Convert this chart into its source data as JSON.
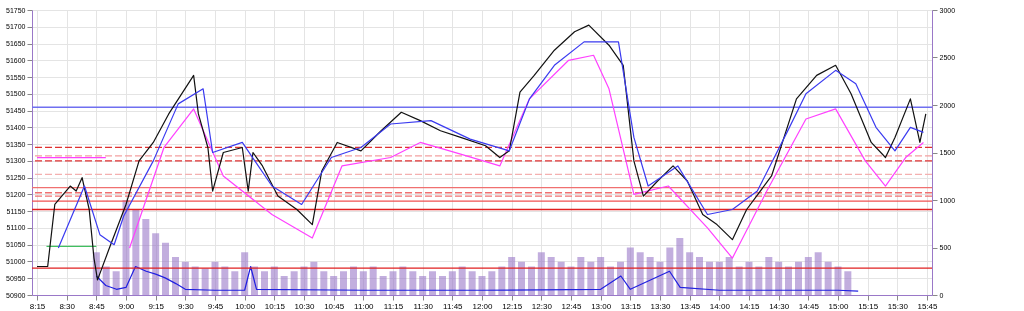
{
  "chart_data": {
    "type": "line",
    "grid": true,
    "xlim": [
      8.25,
      15.75
    ],
    "xticks": [
      {
        "value": 8.25,
        "label": "8:15"
      },
      {
        "value": 8.5,
        "label": "8:30"
      },
      {
        "value": 8.75,
        "label": "8:45"
      },
      {
        "value": 9,
        "label": "9:00"
      },
      {
        "value": 9.25,
        "label": "9:15"
      },
      {
        "value": 9.5,
        "label": "9:30"
      },
      {
        "value": 9.75,
        "label": "9:45"
      },
      {
        "value": 10,
        "label": "10:00"
      },
      {
        "value": 10.25,
        "label": "10:15"
      },
      {
        "value": 10.5,
        "label": "10:30"
      },
      {
        "value": 10.75,
        "label": "10:45"
      },
      {
        "value": 11,
        "label": "11:00"
      },
      {
        "value": 11.25,
        "label": "11:15"
      },
      {
        "value": 11.5,
        "label": "11:30"
      },
      {
        "value": 11.75,
        "label": "11:45"
      },
      {
        "value": 12,
        "label": "12:00"
      },
      {
        "value": 12.25,
        "label": "12:15"
      },
      {
        "value": 12.5,
        "label": "12:30"
      },
      {
        "value": 12.75,
        "label": "12:45"
      },
      {
        "value": 13,
        "label": "13:00"
      },
      {
        "value": 13.25,
        "label": "13:15"
      },
      {
        "value": 13.5,
        "label": "13:30"
      },
      {
        "value": 13.75,
        "label": "13:45"
      },
      {
        "value": 14,
        "label": "14:00"
      },
      {
        "value": 14.25,
        "label": "14:15"
      },
      {
        "value": 14.5,
        "label": "14:30"
      },
      {
        "value": 14.75,
        "label": "14:45"
      },
      {
        "value": 15,
        "label": "15:00"
      },
      {
        "value": 15.25,
        "label": "15:15"
      },
      {
        "value": 15.5,
        "label": "15:30"
      },
      {
        "value": 15.75,
        "label": "15:45"
      }
    ],
    "ylim": [
      50900,
      51750
    ],
    "yticks": [
      50900,
      50950,
      51000,
      51050,
      51100,
      51150,
      51200,
      51250,
      51300,
      51350,
      51400,
      51450,
      51500,
      51550,
      51600,
      51650,
      51700,
      51750
    ],
    "y2lim": [
      0,
      3000
    ],
    "y2ticks": [
      0,
      500,
      1000,
      1500,
      2000,
      2500,
      3000
    ],
    "ref_lines": [
      {
        "axis": "y",
        "value": 51460,
        "color": "#6f6ff0",
        "line_style": "solid"
      },
      {
        "axis": "y",
        "value": 51340,
        "color": "#e03030",
        "line_style": "dashed"
      },
      {
        "axis": "y",
        "value": 51315,
        "color": "#f4a0a0",
        "line_style": "dashed"
      },
      {
        "axis": "y",
        "value": 51300,
        "color": "#e03030",
        "line_style": "dashed"
      },
      {
        "axis": "y",
        "value": 51260,
        "color": "#f4b0b0",
        "line_style": "dashed"
      },
      {
        "axis": "y",
        "value": 51220,
        "color": "#f07070",
        "line_style": "solid"
      },
      {
        "axis": "y",
        "value": 51205,
        "color": "#f07070",
        "line_style": "dashed"
      },
      {
        "axis": "y",
        "value": 51195,
        "color": "#f07070",
        "line_style": "dashed"
      },
      {
        "axis": "y",
        "value": 51180,
        "color": "#f05050",
        "line_style": "solid"
      },
      {
        "axis": "y",
        "value": 51155,
        "color": "#e02020",
        "line_style": "solid"
      },
      {
        "axis": "y",
        "value": 50980,
        "color": "#e02020",
        "line_style": "solid"
      }
    ],
    "series": [
      {
        "type": "bar",
        "axis": "y2",
        "color": "#9a78c8",
        "x": [
          8.75,
          8.833,
          8.917,
          9,
          9.083,
          9.167,
          9.25,
          9.333,
          9.417,
          9.5,
          9.583,
          9.667,
          9.75,
          9.833,
          9.917,
          10,
          10.083,
          10.167,
          10.25,
          10.333,
          10.417,
          10.5,
          10.583,
          10.667,
          10.75,
          10.833,
          10.917,
          11,
          11.083,
          11.167,
          11.25,
          11.333,
          11.417,
          11.5,
          11.583,
          11.667,
          11.75,
          11.833,
          11.917,
          12,
          12.083,
          12.167,
          12.25,
          12.333,
          12.417,
          12.5,
          12.583,
          12.667,
          12.75,
          12.833,
          12.917,
          13,
          13.083,
          13.167,
          13.25,
          13.333,
          13.417,
          13.5,
          13.583,
          13.667,
          13.75,
          13.833,
          13.917,
          14,
          14.083,
          14.167,
          14.25,
          14.333,
          14.417,
          14.5,
          14.583,
          14.667,
          14.75,
          14.833,
          14.917,
          15,
          15.083
        ],
        "values": [
          450,
          300,
          250,
          1000,
          900,
          800,
          650,
          550,
          400,
          350,
          300,
          280,
          350,
          300,
          250,
          450,
          300,
          250,
          300,
          200,
          250,
          300,
          350,
          250,
          200,
          250,
          300,
          250,
          300,
          200,
          250,
          300,
          250,
          200,
          250,
          200,
          250,
          300,
          250,
          200,
          250,
          300,
          400,
          350,
          300,
          450,
          400,
          350,
          300,
          400,
          350,
          400,
          300,
          350,
          500,
          450,
          400,
          350,
          500,
          600,
          450,
          400,
          350,
          350,
          400,
          300,
          350,
          300,
          400,
          350,
          300,
          350,
          400,
          450,
          350,
          300,
          250
        ]
      },
      {
        "axis": "y2",
        "color": "#2020e0",
        "line_style": "solid",
        "x": [
          8.75,
          8.83,
          8.92,
          9,
          9.08,
          9.17,
          9.25,
          9.33,
          9.42,
          9.5,
          9.75,
          10,
          10.05,
          10.1,
          11,
          12,
          13,
          13.17,
          13.25,
          13.58,
          13.67,
          14,
          15,
          15.17
        ],
        "values": [
          200,
          100,
          60,
          80,
          300,
          250,
          220,
          180,
          120,
          60,
          50,
          50,
          300,
          60,
          50,
          50,
          60,
          200,
          60,
          250,
          80,
          50,
          50,
          40
        ]
      },
      {
        "color": "#40c060",
        "line_style": "solid",
        "x": [
          8.33,
          8.75
        ],
        "values": [
          51045,
          51045
        ]
      },
      {
        "color": "#ff40ff",
        "line_style": "solid",
        "x": [
          8.25,
          8.83
        ],
        "values": [
          51310,
          51310
        ]
      },
      {
        "color": "#ff40ff",
        "line_style": "solid",
        "x": [
          9.03,
          9.32,
          9.57,
          9.82,
          10.23,
          10.57,
          10.82,
          11.23,
          11.48,
          11.82,
          12.15,
          12.4,
          12.73,
          12.94,
          13.07,
          13.28,
          13.57,
          13.9,
          14.11,
          14.4,
          14.73,
          14.98,
          15.23,
          15.4,
          15.57,
          15.72
        ],
        "values": [
          51040,
          51340,
          51455,
          51255,
          51140,
          51070,
          51285,
          51310,
          51355,
          51320,
          51285,
          51485,
          51600,
          51615,
          51515,
          51200,
          51225,
          51100,
          51010,
          51210,
          51425,
          51455,
          51300,
          51225,
          51310,
          51355
        ]
      },
      {
        "color": "#111111",
        "line_style": "solid",
        "x": [
          8.25,
          8.34,
          8.4,
          8.53,
          8.58,
          8.63,
          8.69,
          8.73,
          8.76,
          8.86,
          9,
          9.11,
          9.23,
          9.36,
          9.57,
          9.61,
          9.69,
          9.73,
          9.82,
          9.98,
          10.03,
          10.07,
          10.15,
          10.28,
          10.44,
          10.57,
          10.65,
          10.78,
          10.98,
          11.15,
          11.32,
          11.48,
          11.65,
          11.82,
          12.03,
          12.15,
          12.23,
          12.32,
          12.44,
          12.61,
          12.78,
          12.9,
          13.07,
          13.19,
          13.28,
          13.36,
          13.48,
          13.61,
          13.73,
          13.86,
          13.98,
          14.11,
          14.23,
          14.44,
          14.65,
          14.82,
          14.98,
          15.11,
          15.28,
          15.4,
          15.48,
          15.61,
          15.69,
          15.74
        ],
        "values": [
          50985,
          50985,
          51170,
          51225,
          51210,
          51250,
          51155,
          51010,
          50945,
          51040,
          51170,
          51300,
          51355,
          51440,
          51555,
          51440,
          51340,
          51210,
          51325,
          51340,
          51210,
          51325,
          51285,
          51195,
          51155,
          51110,
          51270,
          51355,
          51330,
          51390,
          51445,
          51420,
          51390,
          51370,
          51345,
          51310,
          51330,
          51505,
          51555,
          51630,
          51685,
          51705,
          51645,
          51585,
          51300,
          51195,
          51240,
          51285,
          51240,
          51140,
          51110,
          51065,
          51155,
          51255,
          51485,
          51555,
          51585,
          51500,
          51355,
          51310,
          51370,
          51485,
          51355,
          51440
        ]
      },
      {
        "color": "#3a3af0",
        "line_style": "solid",
        "x": [
          8.43,
          8.65,
          8.78,
          8.9,
          8.98,
          9.23,
          9.44,
          9.65,
          9.73,
          9.98,
          10.23,
          10.48,
          10.73,
          10.98,
          11.23,
          11.57,
          11.9,
          12.23,
          12.4,
          12.61,
          12.86,
          13.15,
          13.28,
          13.4,
          13.65,
          13.9,
          14.11,
          14.32,
          14.57,
          14.73,
          14.98,
          15.15,
          15.32,
          15.48,
          15.61,
          15.72
        ],
        "values": [
          51040,
          51225,
          51080,
          51050,
          51135,
          51300,
          51470,
          51515,
          51325,
          51355,
          51225,
          51170,
          51310,
          51340,
          51410,
          51420,
          51365,
          51330,
          51485,
          51585,
          51655,
          51655,
          51370,
          51225,
          51285,
          51140,
          51155,
          51210,
          51385,
          51500,
          51570,
          51530,
          51400,
          51330,
          51400,
          51385
        ]
      }
    ]
  }
}
